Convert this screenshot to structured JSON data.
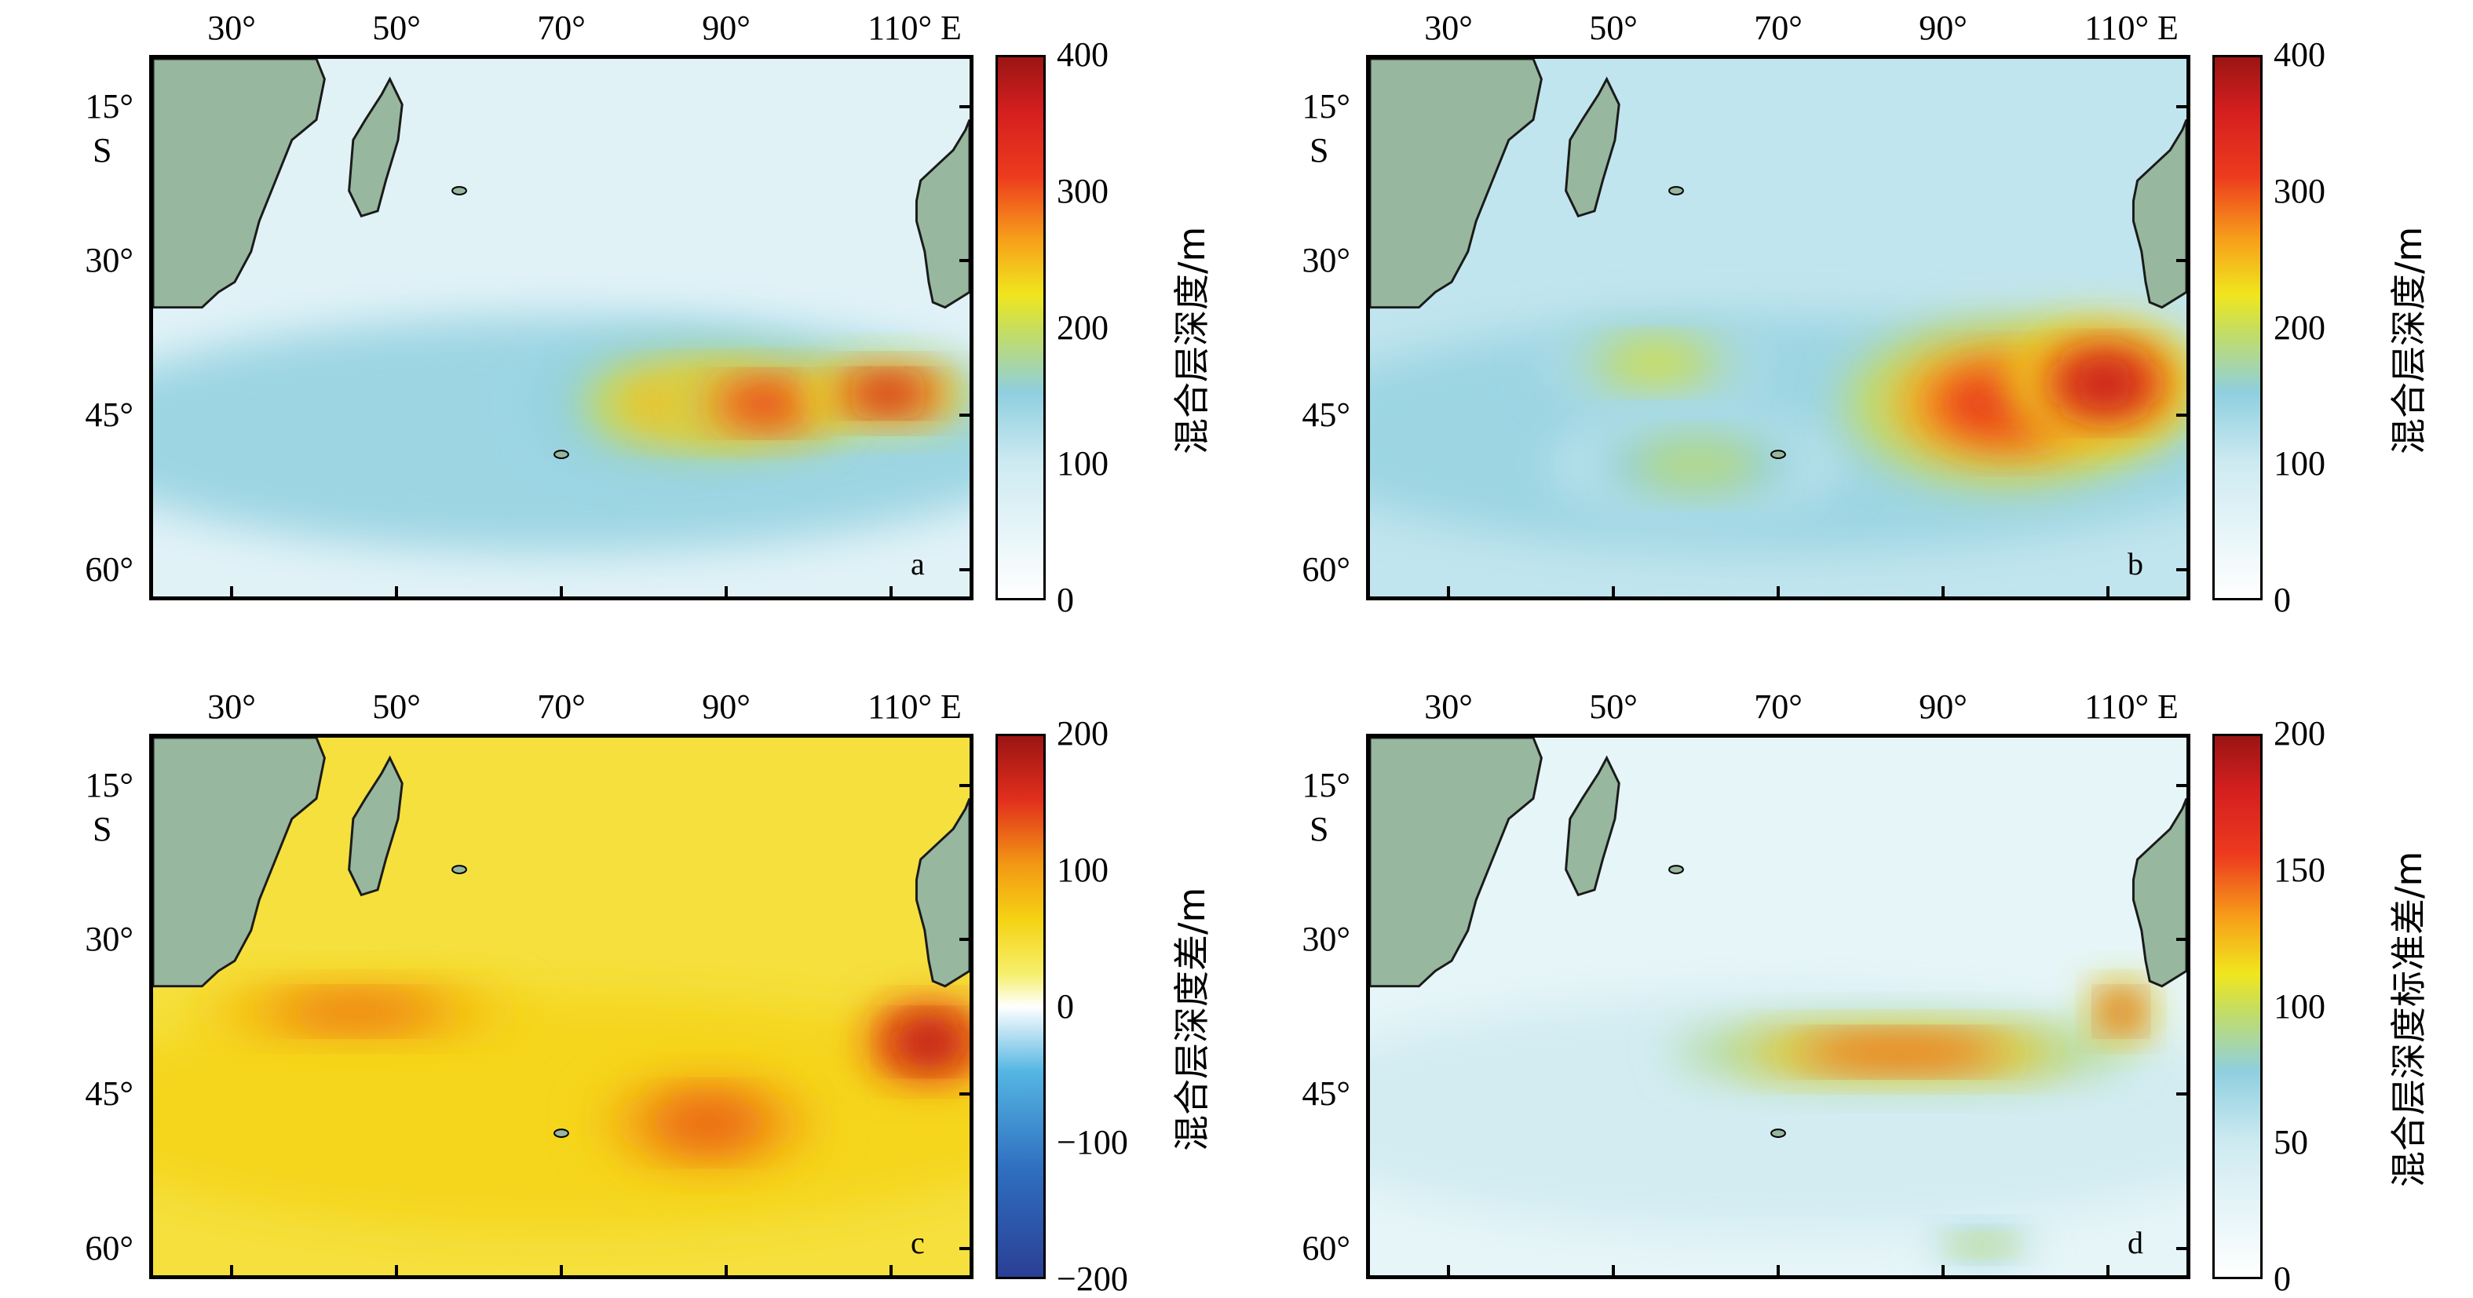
{
  "panels": [
    {
      "id": "a",
      "label": "a",
      "x_ticks": [
        "30°",
        "50°",
        "70°",
        "90°",
        "110° E"
      ],
      "y_ticks": [
        "15°",
        "30°",
        "45°",
        "60°"
      ],
      "hemisphere": "S",
      "colorbar": {
        "title": "混合层深度/m",
        "ticks": [
          "400",
          "300",
          "200",
          "100",
          "0"
        ],
        "min": 0,
        "max": 400
      },
      "fields": [
        {
          "lon": 85,
          "lat": 44,
          "a": 18,
          "b": 6,
          "value": 250
        },
        {
          "lon": 95,
          "lat": 44,
          "a": 12,
          "b": 4,
          "value": 330
        },
        {
          "lon": 110,
          "lat": 43,
          "a": 10,
          "b": 3,
          "value": 370
        }
      ]
    },
    {
      "id": "b",
      "label": "b",
      "x_ticks": [
        "30°",
        "50°",
        "70°",
        "90°",
        "110° E"
      ],
      "y_ticks": [
        "15°",
        "30°",
        "45°",
        "60°"
      ],
      "hemisphere": "S",
      "colorbar": {
        "title": "混合层深度/m",
        "ticks": [
          "400",
          "300",
          "200",
          "100",
          "0"
        ],
        "min": 0,
        "max": 400
      },
      "fields": [
        {
          "lon": 55,
          "lat": 40,
          "a": 14,
          "b": 4,
          "value": 210
        },
        {
          "lon": 60,
          "lat": 50,
          "a": 18,
          "b": 5,
          "value": 190
        },
        {
          "lon": 98,
          "lat": 44,
          "a": 20,
          "b": 8,
          "value": 320
        },
        {
          "lon": 110,
          "lat": 42,
          "a": 12,
          "b": 6,
          "value": 370
        }
      ]
    },
    {
      "id": "c",
      "label": "c",
      "x_ticks": [
        "30°",
        "50°",
        "70°",
        "90°",
        "110° E"
      ],
      "y_ticks": [
        "15°",
        "30°",
        "45°",
        "60°"
      ],
      "hemisphere": "S",
      "colorbar": {
        "title": "混合层深度差/m",
        "ticks": [
          "200",
          "100",
          "0",
          "−100",
          "−200"
        ],
        "min": -200,
        "max": 200
      },
      "fields": [
        {
          "lon": 45,
          "lat": 37,
          "a": 20,
          "b": 3,
          "value": 120
        },
        {
          "lon": 88,
          "lat": 48,
          "a": 14,
          "b": 5,
          "value": 130
        },
        {
          "lon": 115,
          "lat": 40,
          "a": 8,
          "b": 4,
          "value": 190
        }
      ]
    },
    {
      "id": "d",
      "label": "d",
      "x_ticks": [
        "30°",
        "50°",
        "70°",
        "90°",
        "110° E"
      ],
      "y_ticks": [
        "15°",
        "30°",
        "45°",
        "60°"
      ],
      "hemisphere": "S",
      "colorbar": {
        "title": "混合层深度标准差/m",
        "ticks": [
          "200",
          "150",
          "100",
          "50",
          "0"
        ],
        "min": 0,
        "max": 200
      },
      "fields": [
        {
          "lon": 85,
          "lat": 41,
          "a": 28,
          "b": 3,
          "value": 150
        },
        {
          "lon": 112,
          "lat": 37,
          "a": 4,
          "b": 3,
          "value": 170
        },
        {
          "lon": 95,
          "lat": 60,
          "a": 6,
          "b": 1.5,
          "value": 110
        }
      ]
    }
  ]
}
